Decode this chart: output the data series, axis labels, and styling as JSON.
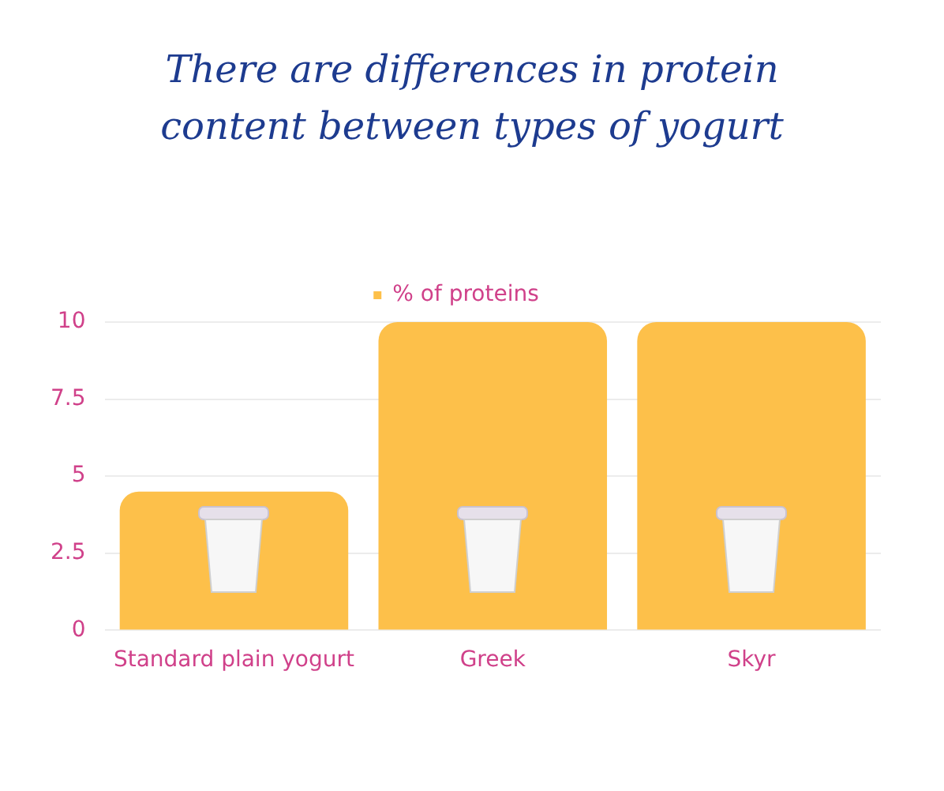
{
  "chart_data": {
    "type": "bar",
    "title": "There are differences in protein content between types of yogurt",
    "categories": [
      "Standard plain yogurt",
      "Greek",
      "Skyr"
    ],
    "series": [
      {
        "name": "% of proteins",
        "color": "#fdc04a",
        "values": [
          4.5,
          10,
          10
        ]
      }
    ],
    "ylim": [
      0,
      10
    ],
    "yticks": [
      0,
      2.5,
      5,
      7.5,
      10
    ],
    "grid": "y",
    "legend": "top"
  }
}
